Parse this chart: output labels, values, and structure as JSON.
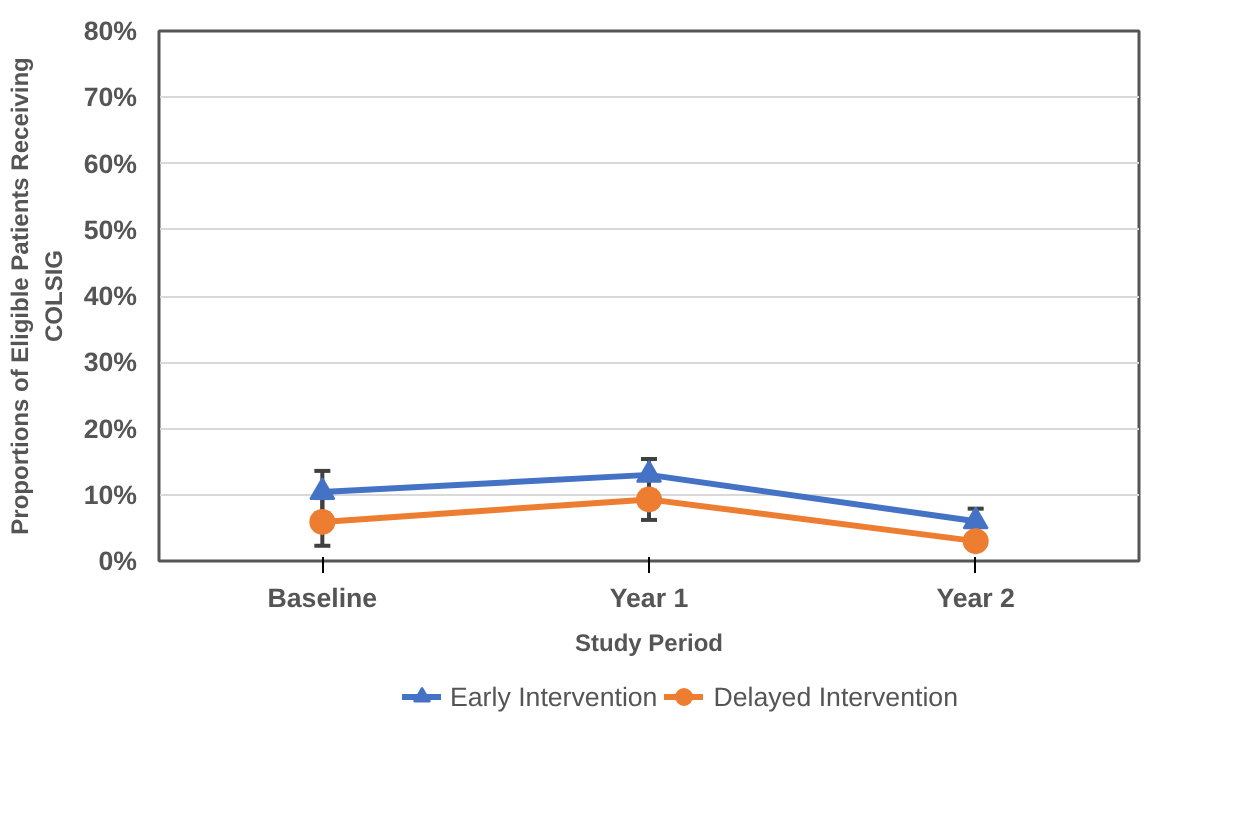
{
  "chart_data": {
    "type": "line",
    "xlabel": "Study Period",
    "ylabel": "Proportions of Eligible Patients Receiving\nCOLSIG",
    "categories": [
      "Baseline",
      "Year 1",
      "Year 2"
    ],
    "series": [
      {
        "name": "Early Intervention",
        "color": "#4472c4",
        "values": [
          10.4,
          13.0,
          6.0
        ],
        "errors": [
          3.2,
          2.4,
          1.9
        ],
        "marker": "triangle"
      },
      {
        "name": "Delayed Intervention",
        "color": "#ed7d31",
        "values": [
          5.9,
          9.3,
          3.0
        ],
        "errors": [
          3.6,
          3.1,
          null
        ],
        "marker": "circle"
      }
    ],
    "ylim": [
      0,
      80
    ],
    "yticks": [
      {
        "value": 0,
        "label": "0%"
      },
      {
        "value": 10,
        "label": "10%"
      },
      {
        "value": 20,
        "label": "20%"
      },
      {
        "value": 30,
        "label": "30%"
      },
      {
        "value": 40,
        "label": "40%"
      },
      {
        "value": 50,
        "label": "50%"
      },
      {
        "value": 60,
        "label": "60%"
      },
      {
        "value": 70,
        "label": "70%"
      },
      {
        "value": 80,
        "label": "80%"
      }
    ],
    "grid": "y",
    "legend": "bottom",
    "line_style": "solid"
  }
}
